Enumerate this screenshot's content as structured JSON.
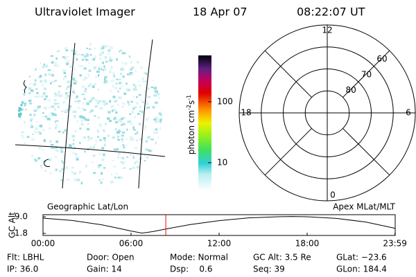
{
  "header": {
    "title": "Ultraviolet Imager",
    "date": "18 Apr 07",
    "time": "08:22:07 UT"
  },
  "image_label": "Geographic Lat/Lon",
  "colorbar": {
    "label_parts": [
      "photon cm",
      "-2",
      "s",
      "-1"
    ],
    "scale": "log",
    "ylim": [
      3.5,
      577
    ],
    "yticks": [
      10,
      100
    ]
  },
  "polar": {
    "title": "Apex MLat/MLT",
    "mlt_ticks": [
      0,
      6,
      12,
      18
    ],
    "lat_lim": [
      50,
      90
    ],
    "lat_ticks": [
      60,
      70,
      80
    ]
  },
  "timeline": {
    "ylabel": "GC Alt",
    "xlim": [
      0,
      24
    ],
    "ylim": [
      0.9,
      9.9
    ],
    "xticks": [
      {
        "value": 0,
        "label": "00:00"
      },
      {
        "value": 6,
        "label": "06:00"
      },
      {
        "value": 12,
        "label": "12:00"
      },
      {
        "value": 18,
        "label": "18:00"
      },
      {
        "value": 23.983,
        "label": "23:59"
      }
    ],
    "yticks": [
      1.8,
      {
        "value": 9,
        "label": "9.0"
      }
    ],
    "x": [
      0,
      2,
      4,
      5,
      6,
      6.75,
      7.5,
      8.3,
      10,
      12,
      14,
      16,
      17,
      18,
      20,
      22,
      23.983
    ],
    "values": [
      8.4,
      7.4,
      5.5,
      4.2,
      2.8,
      1.9,
      2.6,
      3.6,
      5.6,
      7.3,
      8.5,
      9.0,
      9.1,
      9.0,
      8.3,
      6.7,
      4.0
    ],
    "color": "#000000",
    "marker": {
      "x": 8.369,
      "color": "#ff0000"
    }
  },
  "status": {
    "rows": [
      [
        "Flt: LBHL",
        "Door: Open",
        "Mode: Normal",
        "GC Alt: 3.5 Re",
        "GLat: −23.6"
      ],
      [
        "IP: 36.0",
        "Gain: 14",
        "Dsp:    0.6",
        "Seq: 39",
        "GLon: 184.4"
      ]
    ]
  }
}
